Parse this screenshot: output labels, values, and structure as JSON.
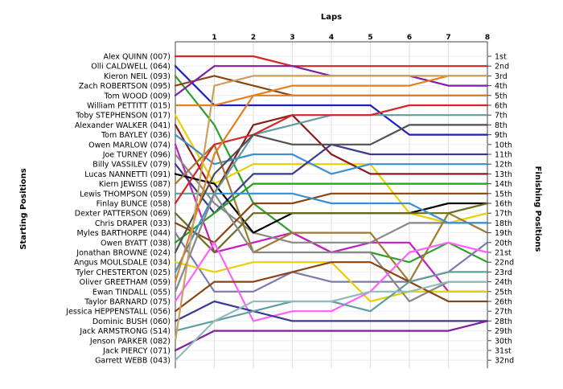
{
  "chart_data": {
    "type": "line",
    "title": "Laps",
    "xlabel": "Laps",
    "ylabel_left": "Starting Positions",
    "ylabel_right": "Finishing Positions",
    "laps": [
      1,
      2,
      3,
      4,
      5,
      6,
      7,
      8
    ],
    "lap_tick_labels": [
      "1",
      "2",
      "3",
      "4",
      "5",
      "6",
      "7",
      "8"
    ],
    "position_range": [
      1,
      32
    ],
    "finishing_labels": [
      "1st",
      "2nd",
      "3rd",
      "4th",
      "5th",
      "6th",
      "7th",
      "8th",
      "9th",
      "10th",
      "11th",
      "12th",
      "13th",
      "14th",
      "15th",
      "16th",
      "17th",
      "18th",
      "19th",
      "20th",
      "21st",
      "22nd",
      "23rd",
      "24th",
      "25th",
      "26th",
      "27th",
      "28th",
      "29th",
      "30th",
      "31st",
      "32nd"
    ],
    "grid": true,
    "series": [
      {
        "name": "Alex QUINN (007)",
        "color": "#d62728",
        "positions": [
          1,
          1,
          1,
          2,
          2,
          2,
          2,
          2,
          2
        ]
      },
      {
        "name": "Olli CALDWELL (064)",
        "color": "#1f1fbf",
        "positions": [
          2,
          6,
          6,
          6,
          6,
          6,
          9,
          9,
          9
        ]
      },
      {
        "name": "Kieron NEIL (093)",
        "color": "#2ca02c",
        "positions": [
          3,
          8,
          16,
          19,
          21,
          21,
          22,
          20,
          22
        ]
      },
      {
        "name": "Zach ROBERTSON (095)",
        "color": "#8b4513",
        "positions": [
          4,
          3,
          4,
          5,
          5,
          5,
          5,
          5,
          5
        ]
      },
      {
        "name": "Tom WOOD (009)",
        "color": "#7f1fa0",
        "positions": [
          5,
          2,
          2,
          2,
          3,
          3,
          3,
          4,
          4
        ]
      },
      {
        "name": "William PETTITT (015)",
        "color": "#e08020",
        "positions": [
          6,
          6,
          5,
          4,
          4,
          4,
          4,
          3,
          3
        ]
      },
      {
        "name": "Toby STEPHENSON (017)",
        "color": "#e8d000",
        "positions": [
          7,
          14,
          12,
          12,
          12,
          12,
          17,
          18,
          17
        ]
      },
      {
        "name": "Alexander WALKER (041)",
        "color": "#8b1a1a",
        "positions": [
          8,
          15,
          8,
          7,
          11,
          13,
          13,
          13,
          13
        ]
      },
      {
        "name": "Tom BAYLEY (036)",
        "color": "#3b8fd0",
        "positions": [
          9,
          12,
          11,
          11,
          13,
          12,
          12,
          12,
          12
        ]
      },
      {
        "name": "Owen MARLOW (074)",
        "color": "#c020c0",
        "positions": [
          10,
          21,
          20,
          19,
          21,
          20,
          20,
          25,
          25
        ]
      },
      {
        "name": "Joe TURNEY (096)",
        "color": "#888888",
        "positions": [
          11,
          16,
          19,
          20,
          20,
          20,
          18,
          18,
          18
        ]
      },
      {
        "name": "Billy VASSILEV (079)",
        "color": "#3a3a90",
        "positions": [
          12,
          17,
          13,
          13,
          10,
          11,
          11,
          11,
          11
        ]
      },
      {
        "name": "Lucas NANNETTI (091)",
        "color": "#000000",
        "positions": [
          13,
          14,
          19,
          17,
          17,
          17,
          17,
          16,
          16
        ]
      },
      {
        "name": "Kiern JEWISS (087)",
        "color": "#a07a30",
        "positions": [
          14,
          10,
          21,
          19,
          19,
          19,
          24,
          17,
          19
        ]
      },
      {
        "name": "Lewis THOMPSON (059)",
        "color": "#5f9ea0",
        "positions": [
          15,
          15,
          9,
          8,
          7,
          7,
          7,
          7,
          7
        ]
      },
      {
        "name": "Finlay BUNCE (058)",
        "color": "#d62728",
        "positions": [
          16,
          10,
          9,
          7,
          7,
          7,
          6,
          6,
          6
        ]
      },
      {
        "name": "Dexter PATTERSON (069)",
        "color": "#6b6b20",
        "positions": [
          17,
          21,
          17,
          17,
          17,
          17,
          17,
          17,
          16
        ]
      },
      {
        "name": "Chris DRAPER (033)",
        "color": "#8b4513",
        "positions": [
          18,
          20,
          16,
          16,
          15,
          15,
          15,
          15,
          15
        ]
      },
      {
        "name": "Myles BARTHORPE (044)",
        "color": "#7a7ab0",
        "positions": [
          19,
          25,
          25,
          23,
          24,
          24,
          24,
          23,
          20
        ]
      },
      {
        "name": "Owen BYATT (038)",
        "color": "#20a020",
        "positions": [
          20,
          17,
          14,
          14,
          14,
          14,
          14,
          14,
          14
        ]
      },
      {
        "name": "Jonathan BROWNE (024)",
        "color": "#505050",
        "positions": [
          21,
          13,
          9,
          10,
          10,
          10,
          8,
          8,
          8
        ]
      },
      {
        "name": "Angus MOULSDALE (034)",
        "color": "#e8d000",
        "positions": [
          22,
          23,
          22,
          22,
          22,
          26,
          25,
          25,
          25
        ]
      },
      {
        "name": "Tyler CHESTERTON (025)",
        "color": "#3b8fd0",
        "positions": [
          23,
          15,
          15,
          15,
          16,
          16,
          16,
          18,
          18
        ]
      },
      {
        "name": "Oliver GREETHAM (059)",
        "color": "#e08020",
        "positions": [
          24,
          11,
          5,
          5,
          5,
          5,
          5,
          5,
          5
        ]
      },
      {
        "name": "Ewan TINDALL (055)",
        "color": "#888888",
        "positions": [
          25,
          15,
          21,
          21,
          21,
          21,
          26,
          24,
          24
        ]
      },
      {
        "name": "Taylor BARNARD (075)",
        "color": "#ff60ff",
        "positions": [
          26,
          20,
          28,
          27,
          27,
          25,
          21,
          20,
          21
        ]
      },
      {
        "name": "Jessica HEPPENSTALL (056)",
        "color": "#8b4513",
        "positions": [
          27,
          24,
          24,
          23,
          22,
          22,
          24,
          26,
          26
        ]
      },
      {
        "name": "Dominic BUSH (060)",
        "color": "#3a3a90",
        "positions": [
          28,
          26,
          27,
          28,
          28,
          28,
          28,
          28,
          28
        ]
      },
      {
        "name": "Jack ARMSTRONG (S14)",
        "color": "#5f9ea0",
        "positions": [
          29,
          28,
          27,
          26,
          26,
          27,
          24,
          23,
          23
        ]
      },
      {
        "name": "Jenson PARKER (082)",
        "color": "#c8a060",
        "positions": [
          30,
          4,
          3,
          3,
          3,
          3,
          3,
          3,
          3
        ]
      },
      {
        "name": "Jack PIERCY (071)",
        "color": "#7f1fa0",
        "positions": [
          31,
          29,
          29,
          29,
          29,
          29,
          29,
          29,
          28
        ]
      },
      {
        "name": "Garrett WEBB (043)",
        "color": "#8fbcbc",
        "positions": [
          32,
          28,
          26,
          26,
          26,
          25,
          25,
          24,
          24
        ]
      }
    ]
  }
}
